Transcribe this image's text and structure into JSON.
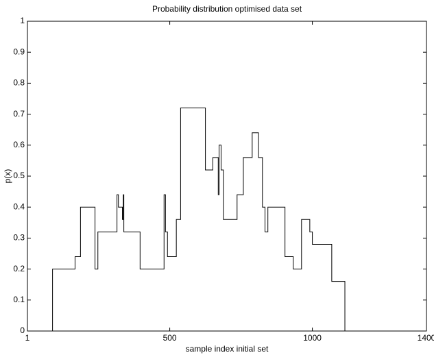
{
  "chart_data": {
    "type": "line",
    "title": "Probability distribution optimised data set",
    "xlabel": "sample index initial set",
    "ylabel": "p(x)",
    "color": "#000000",
    "x": [
      89,
      89,
      168,
      168,
      187,
      187,
      238,
      238,
      248,
      248,
      315,
      315,
      320,
      320,
      334,
      334,
      337,
      337,
      339,
      339,
      396,
      396,
      480,
      480,
      485,
      485,
      492,
      492,
      523,
      523,
      538,
      538,
      625,
      625,
      651,
      651,
      670,
      670,
      673,
      673,
      680,
      680,
      688,
      688,
      736,
      736,
      758,
      758,
      789,
      789,
      811,
      811,
      825,
      825,
      834,
      834,
      844,
      844,
      904,
      904,
      933,
      933,
      962,
      962,
      991,
      991,
      1000,
      1000,
      1068,
      1068,
      1114,
      1114
    ],
    "values": [
      0,
      0.2,
      0.2,
      0.24,
      0.24,
      0.4,
      0.4,
      0.2,
      0.2,
      0.32,
      0.32,
      0.44,
      0.44,
      0.4,
      0.4,
      0.36,
      0.36,
      0.44,
      0.44,
      0.32,
      0.32,
      0.2,
      0.2,
      0.44,
      0.44,
      0.32,
      0.32,
      0.24,
      0.24,
      0.36,
      0.36,
      0.72,
      0.72,
      0.52,
      0.52,
      0.56,
      0.56,
      0.44,
      0.44,
      0.6,
      0.6,
      0.52,
      0.52,
      0.36,
      0.36,
      0.44,
      0.44,
      0.56,
      0.56,
      0.64,
      0.64,
      0.56,
      0.56,
      0.4,
      0.4,
      0.32,
      0.32,
      0.4,
      0.4,
      0.24,
      0.24,
      0.2,
      0.2,
      0.36,
      0.36,
      0.32,
      0.32,
      0.28,
      0.28,
      0.16,
      0.16,
      0
    ],
    "xlim": [
      1,
      1400
    ],
    "xticks": [
      1,
      500,
      1000,
      1400
    ],
    "ylim": [
      0,
      1
    ],
    "yticks": [
      0,
      0.1,
      0.2,
      0.3,
      0.4,
      0.5,
      0.6,
      0.7,
      0.8,
      0.9,
      1
    ],
    "grid": false
  }
}
